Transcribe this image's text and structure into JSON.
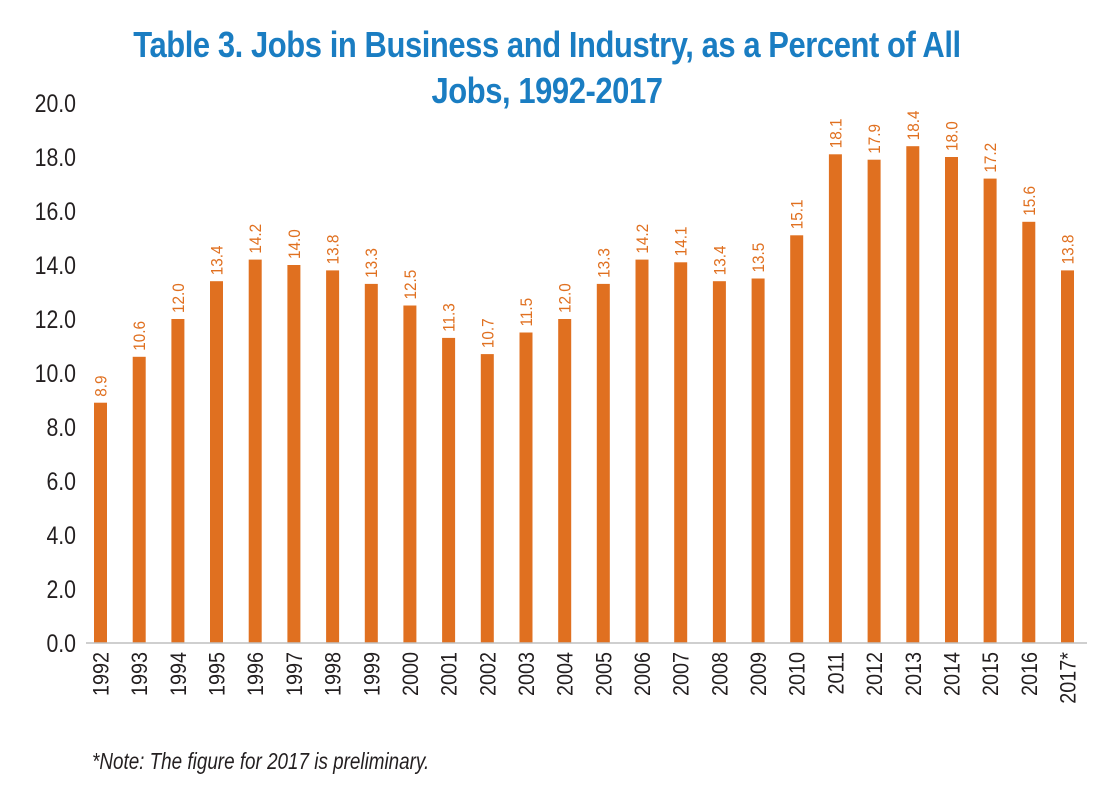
{
  "chart_data": {
    "type": "bar",
    "title": "Table 3. Jobs in Business and Industry, as a Percent of All Jobs, 1992-2017",
    "title_lines": [
      "Table 3. Jobs in Business and Industry, as a Percent of All",
      "Jobs, 1992-2017"
    ],
    "xlabel": "",
    "ylabel": "",
    "categories": [
      "1992",
      "1993",
      "1994",
      "1995",
      "1996",
      "1997",
      "1998",
      "1999",
      "2000",
      "2001",
      "2002",
      "2003",
      "2004",
      "2005",
      "2006",
      "2007",
      "2008",
      "2009",
      "2010",
      "2011",
      "2012",
      "2013",
      "2014",
      "2015",
      "2016",
      "2017*"
    ],
    "values": [
      8.9,
      10.6,
      12.0,
      13.4,
      14.2,
      14.0,
      13.8,
      13.3,
      12.5,
      11.3,
      10.7,
      11.5,
      12.0,
      13.3,
      14.2,
      14.1,
      13.4,
      13.5,
      15.1,
      18.1,
      17.9,
      18.4,
      18.0,
      17.2,
      15.6,
      13.8
    ],
    "data_labels": [
      "8.9",
      "10.6",
      "12.0",
      "13.4",
      "14.2",
      "14.0",
      "13.8",
      "13.3",
      "12.5",
      "11.3",
      "10.7",
      "11.5",
      "12.0",
      "13.3",
      "14.2",
      "14.1",
      "13.4",
      "13.5",
      "15.1",
      "18.1",
      "17.9",
      "18.4",
      "18.0",
      "17.2",
      "15.6",
      "13.8"
    ],
    "ylim": [
      0,
      20
    ],
    "yticks": [
      "0.0",
      "2.0",
      "4.0",
      "6.0",
      "8.0",
      "10.0",
      "12.0",
      "14.0",
      "16.0",
      "18.0",
      "20.0"
    ],
    "ytick_values": [
      0,
      2,
      4,
      6,
      8,
      10,
      12,
      14,
      16,
      18,
      20
    ],
    "grid": false,
    "legend": "none",
    "note": "*Note: The figure for 2017 is preliminary.",
    "colors": {
      "bar": "#E07020",
      "title": "#1A7DC2",
      "text": "#231f20",
      "axis": "#bfbfbf"
    }
  }
}
